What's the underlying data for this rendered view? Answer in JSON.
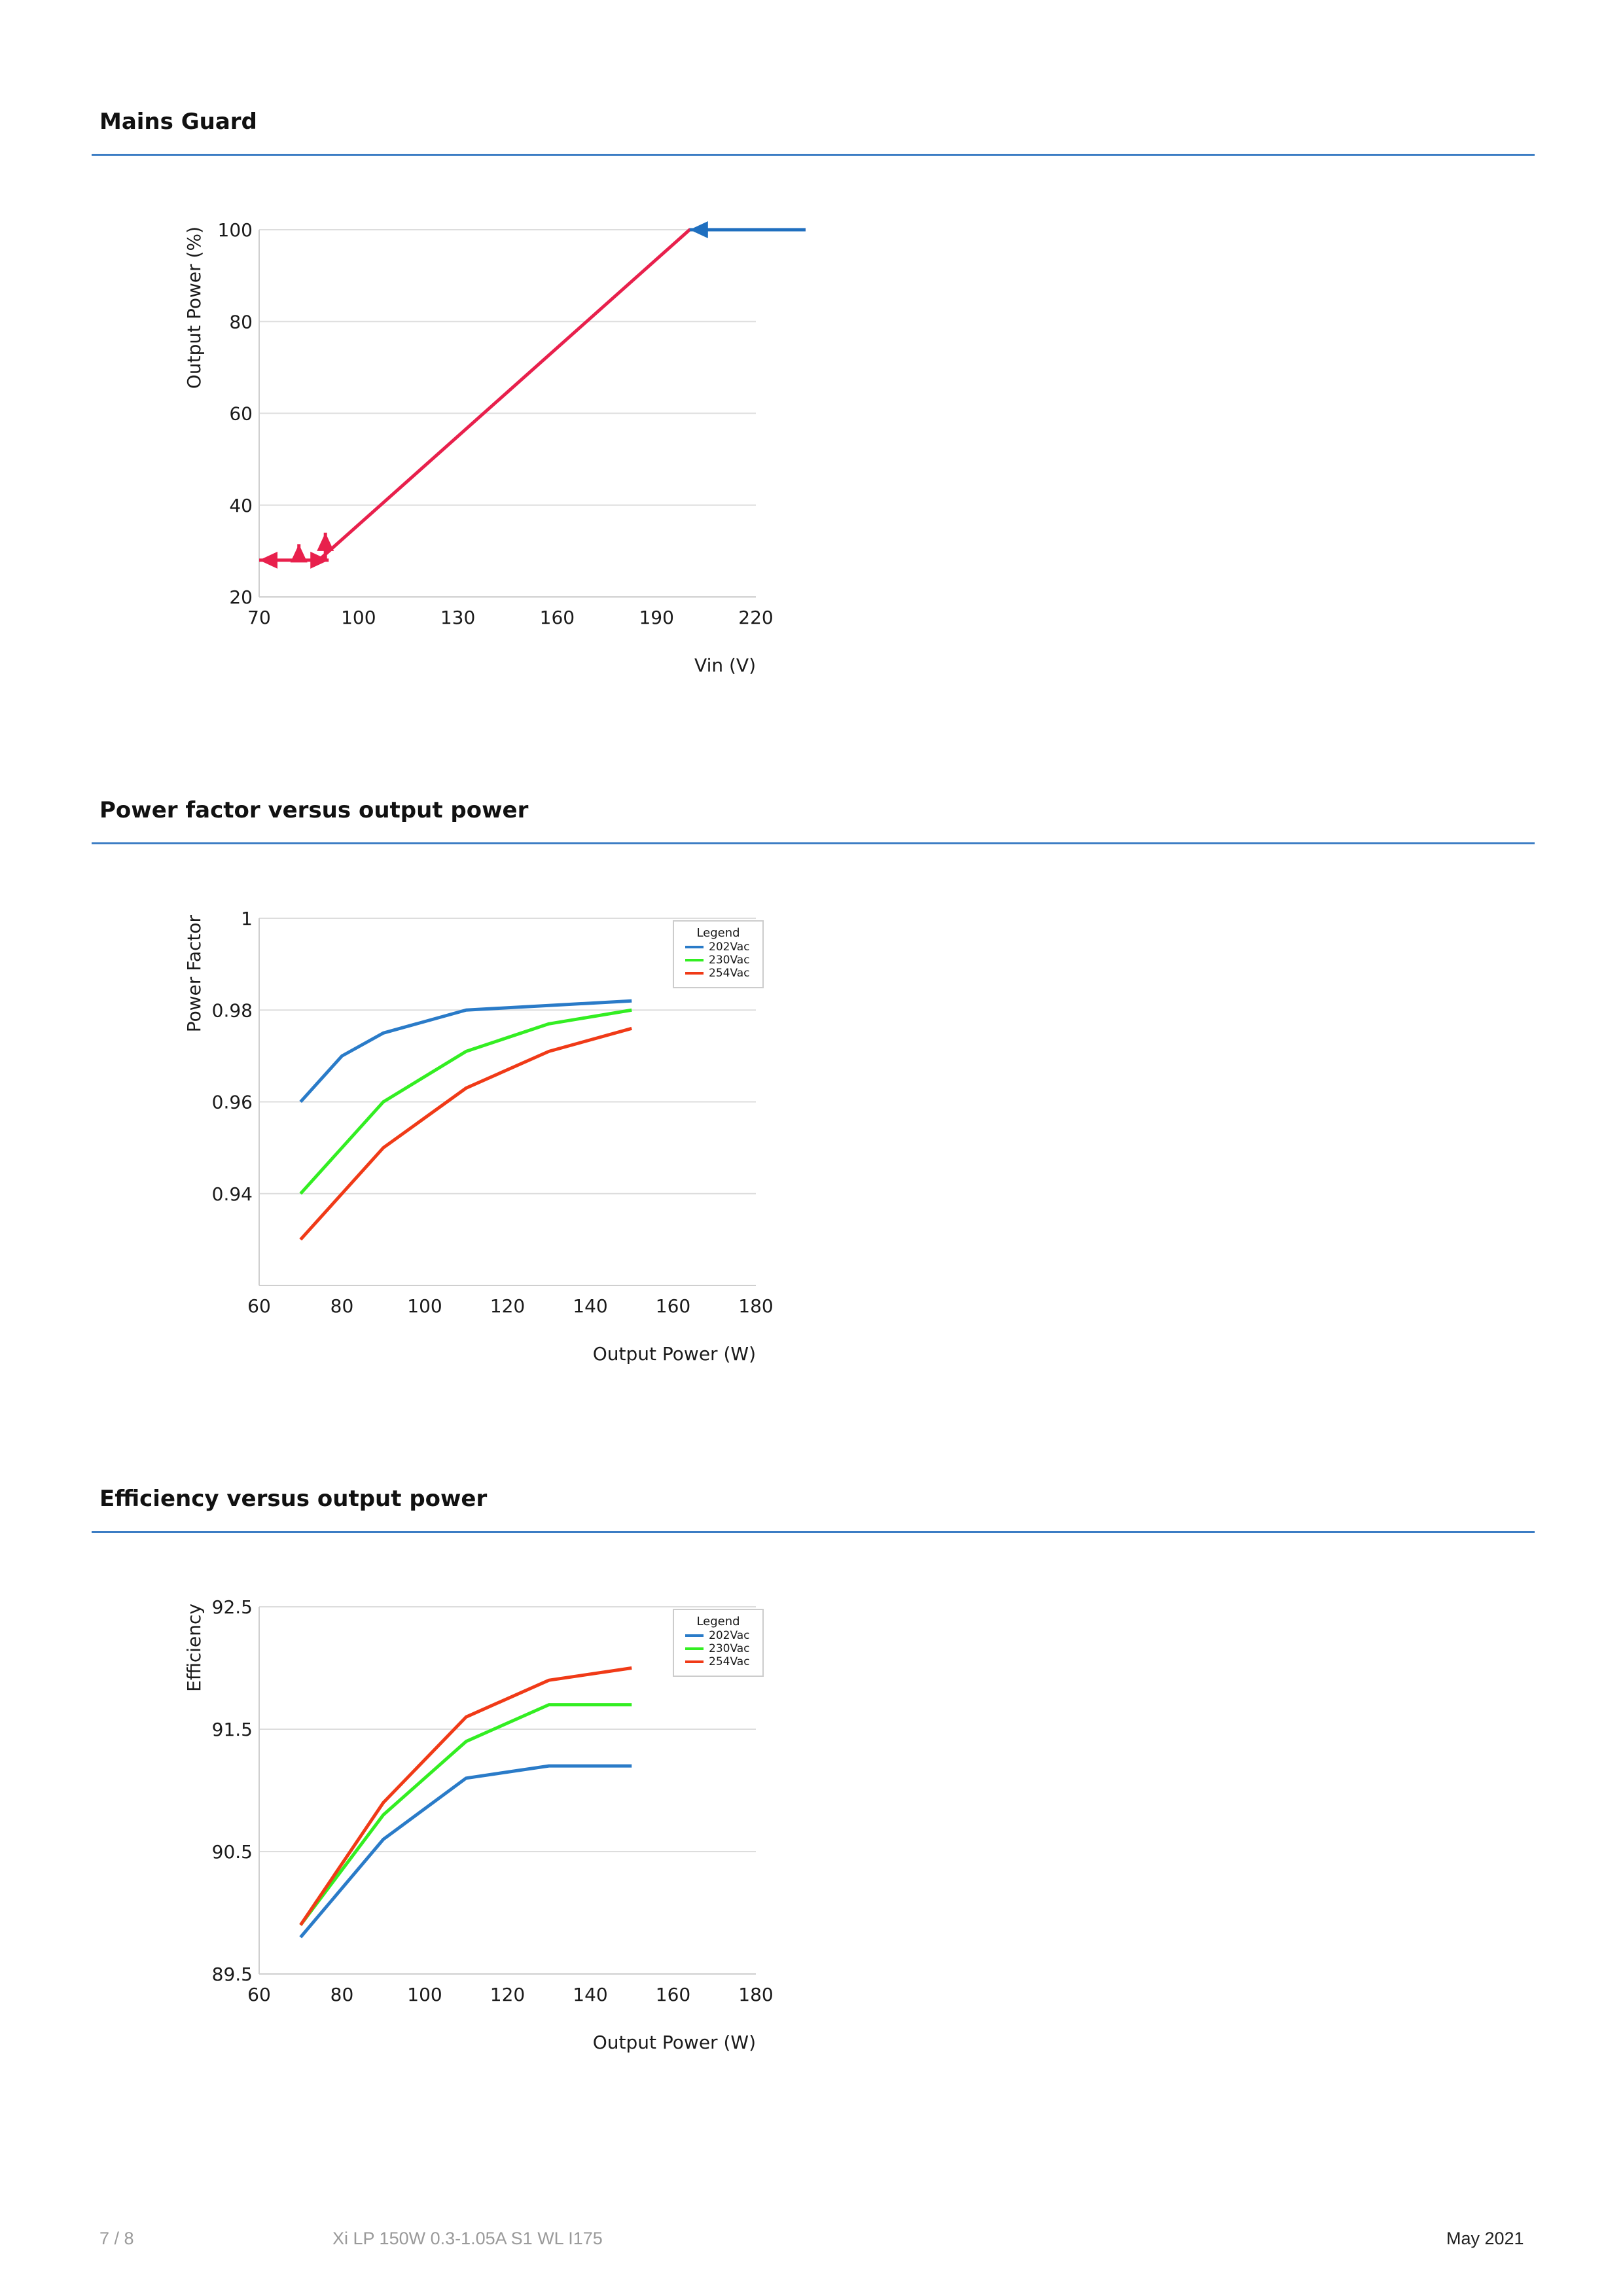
{
  "sections": [
    {
      "title": "Mains Guard"
    },
    {
      "title": "Power factor versus output power"
    },
    {
      "title": "Efficiency versus output power"
    }
  ],
  "footer": {
    "page": "7 / 8",
    "product": "Xi LP 150W 0.3-1.05A S1 WL I175",
    "date": "May 2021"
  },
  "colors": {
    "rule": "#3c7dc4",
    "grid": "#dddddd",
    "mains_line": "#e8204c",
    "arrow_blue": "#1f6fbf",
    "s202": "#2a7bc8",
    "s230": "#33ee22",
    "s254": "#f03a17"
  },
  "chart_data": [
    {
      "type": "line",
      "xlabel": "Vin (V)",
      "ylabel": "Output Power (%)",
      "xlim": [
        70,
        220
      ],
      "ylim": [
        20,
        100
      ],
      "xticks": [
        70,
        100,
        130,
        160,
        190,
        220
      ],
      "yticks": [
        20,
        40,
        60,
        80,
        100
      ],
      "grid": true,
      "series": [
        {
          "x": [
            88,
            200,
            235
          ],
          "y": [
            28,
            100,
            100
          ]
        }
      ],
      "annotations": [
        {
          "type": "arrow",
          "from": [
            235,
            100
          ],
          "to": [
            200,
            100
          ],
          "color": "blue"
        },
        {
          "type": "arrow",
          "from": [
            80,
            28
          ],
          "to": [
            70,
            28
          ],
          "color": "red"
        },
        {
          "type": "arrow",
          "from": [
            80,
            28
          ],
          "to": [
            91,
            28
          ],
          "color": "red"
        },
        {
          "type": "arrow",
          "from": [
            82,
            28
          ],
          "to": [
            82,
            31.5
          ],
          "color": "red"
        },
        {
          "type": "arrow",
          "from": [
            90,
            28
          ],
          "to": [
            90,
            34
          ],
          "color": "red"
        }
      ]
    },
    {
      "type": "line",
      "xlabel": "Output Power (W)",
      "ylabel": "Power Factor",
      "xlim": [
        60,
        180
      ],
      "ylim": [
        0.92,
        1
      ],
      "xticks": [
        60,
        80,
        100,
        120,
        140,
        160,
        180
      ],
      "yticks": [
        0.94,
        0.96,
        0.98,
        1
      ],
      "ytick_labels": [
        "0.94",
        "0.96",
        "0.98",
        "1"
      ],
      "grid": true,
      "legend_title": "Legend",
      "legend_position": "top-right",
      "series": [
        {
          "name": "202Vac",
          "x": [
            70,
            80,
            90,
            110,
            130,
            150
          ],
          "y": [
            0.96,
            0.97,
            0.975,
            0.98,
            0.981,
            0.982
          ]
        },
        {
          "name": "230Vac",
          "x": [
            70,
            80,
            90,
            110,
            130,
            150
          ],
          "y": [
            0.94,
            0.95,
            0.96,
            0.971,
            0.977,
            0.98
          ]
        },
        {
          "name": "254Vac",
          "x": [
            70,
            80,
            90,
            110,
            130,
            150
          ],
          "y": [
            0.93,
            0.94,
            0.95,
            0.963,
            0.971,
            0.976
          ]
        }
      ]
    },
    {
      "type": "line",
      "xlabel": "Output Power (W)",
      "ylabel": "Efficiency",
      "xlim": [
        60,
        180
      ],
      "ylim": [
        89.5,
        92.5
      ],
      "xticks": [
        60,
        80,
        100,
        120,
        140,
        160,
        180
      ],
      "yticks": [
        89.5,
        90.5,
        91.5,
        92.5
      ],
      "ytick_labels": [
        "89.5",
        "90.5",
        "91.5",
        "92.5"
      ],
      "grid": true,
      "legend_title": "Legend",
      "legend_position": "top-right",
      "series": [
        {
          "name": "202Vac",
          "x": [
            70,
            90,
            110,
            130,
            150
          ],
          "y": [
            89.8,
            90.6,
            91.1,
            91.2,
            91.2
          ]
        },
        {
          "name": "230Vac",
          "x": [
            70,
            90,
            110,
            130,
            150
          ],
          "y": [
            89.9,
            90.8,
            91.4,
            91.7,
            91.7
          ]
        },
        {
          "name": "254Vac",
          "x": [
            70,
            90,
            110,
            130,
            150
          ],
          "y": [
            89.9,
            90.9,
            91.6,
            91.9,
            92.0
          ]
        }
      ]
    }
  ]
}
